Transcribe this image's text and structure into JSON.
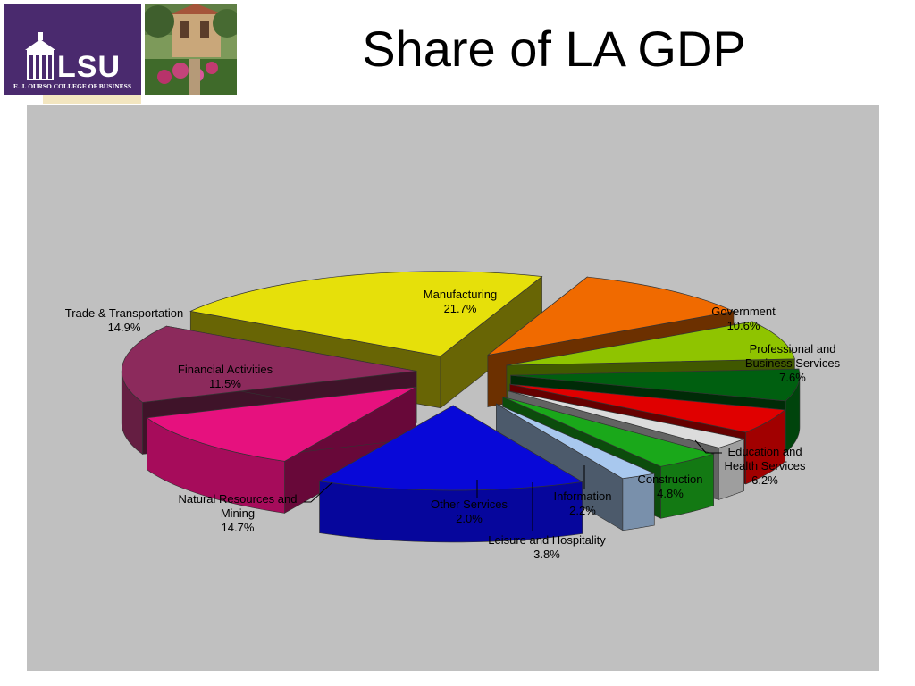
{
  "page": {
    "title": "Share of LA GDP",
    "logo_text": "LSU",
    "logo_subtext": "E. J. OURSO COLLEGE OF BUSINESS"
  },
  "chart_data": {
    "type": "pie",
    "three_d": true,
    "exploded": true,
    "legend": "none",
    "slices": [
      {
        "label": "Manufacturing",
        "value": 21.7,
        "value_label": "21.7%",
        "color": "#e6e00a"
      },
      {
        "label": "Government",
        "value": 10.6,
        "value_label": "10.6%",
        "color": "#f06a00"
      },
      {
        "label": "Professional and Business Services",
        "value": 7.6,
        "value_label": "7.6%",
        "color": "#8fc400"
      },
      {
        "label": "Education and Health Services",
        "value": 6.2,
        "value_label": "6.2%",
        "color": "#005f10"
      },
      {
        "label": "Construction",
        "value": 4.8,
        "value_label": "4.8%",
        "color": "#e00000"
      },
      {
        "label": "Information",
        "value": 2.2,
        "value_label": "2.2%",
        "color": "#dcdcdc"
      },
      {
        "label": "Leisure and Hospitality",
        "value": 3.8,
        "value_label": "3.8%",
        "color": "#1aa81a"
      },
      {
        "label": "Other Services",
        "value": 2.0,
        "value_label": "2.0%",
        "color": "#a8c8ee"
      },
      {
        "label": "Natural Resources and Mining",
        "value": 14.7,
        "value_label": "14.7%",
        "color": "#0808d8"
      },
      {
        "label": "Financial Activities",
        "value": 11.5,
        "value_label": "11.5%",
        "color": "#e6117e"
      },
      {
        "label": "Trade & Transportation",
        "value": 14.9,
        "value_label": "14.9%",
        "color": "#8c2a5c"
      }
    ]
  }
}
